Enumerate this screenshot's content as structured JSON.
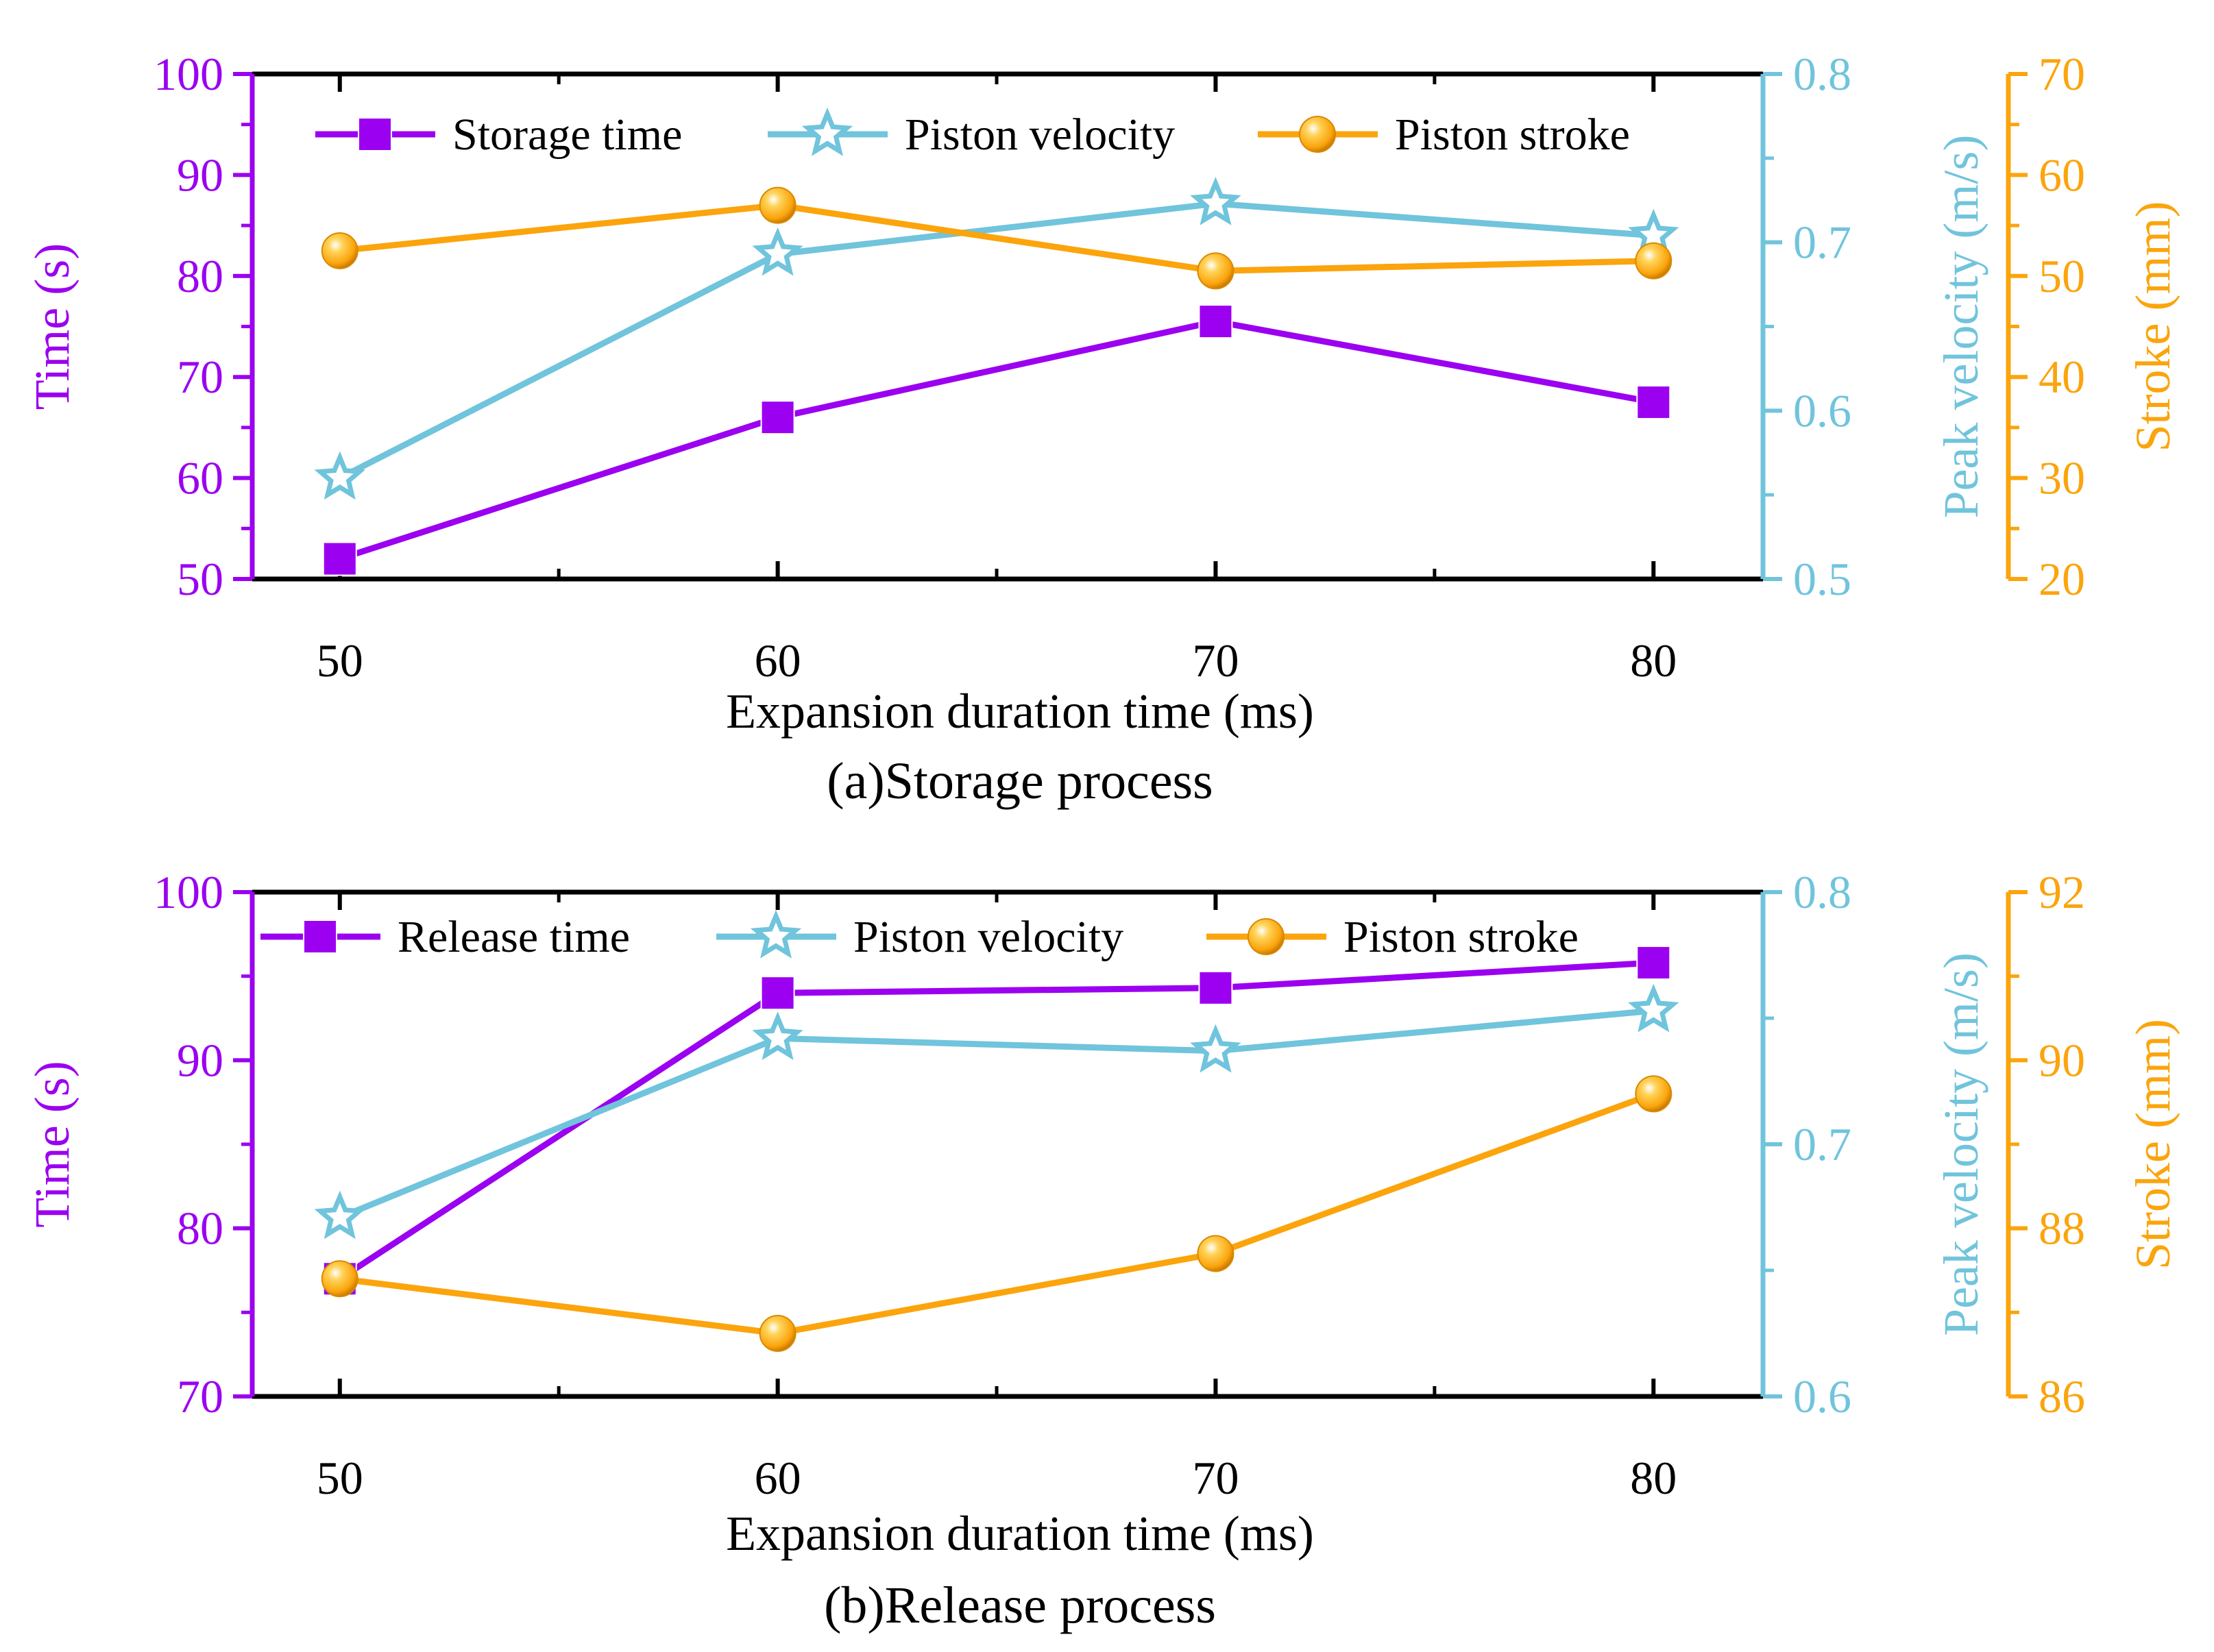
{
  "colors": {
    "time": "#9b00f0",
    "velocity": "#70c4dc",
    "stroke": "#fba40c",
    "axis": "#000000"
  },
  "chart_data": [
    {
      "type": "line",
      "caption": "(a)Storage process",
      "xlabel": "Expansion duration time (ms)",
      "x": [
        50,
        60,
        70,
        80
      ],
      "xlim": [
        48,
        82.5
      ],
      "xticks": [
        "50",
        "60",
        "70",
        "80"
      ],
      "axes": [
        {
          "label": "Time (s)",
          "range": [
            50,
            100
          ],
          "ticks": [
            "50",
            "60",
            "70",
            "80",
            "90",
            "100"
          ],
          "color": "#9b00f0"
        },
        {
          "label": "Peak velocity (m/s)",
          "range": [
            0.5,
            0.8
          ],
          "ticks": [
            "0.5",
            "0.6",
            "0.7",
            "0.8"
          ],
          "color": "#70c4dc"
        },
        {
          "label": "Stroke (mm)",
          "range": [
            20,
            70
          ],
          "ticks": [
            "20",
            "30",
            "40",
            "50",
            "60",
            "70"
          ],
          "color": "#fba40c"
        }
      ],
      "series": [
        {
          "name": "Storage time",
          "axis": 0,
          "marker": "square",
          "color": "#9b00f0",
          "values": [
            52,
            66,
            75.5,
            67.5
          ]
        },
        {
          "name": "Piston velocity",
          "axis": 1,
          "marker": "star",
          "color": "#70c4dc",
          "values": [
            0.56,
            0.693,
            0.723,
            0.704
          ]
        },
        {
          "name": "Piston stroke",
          "axis": 2,
          "marker": "ball",
          "color": "#fba40c",
          "values": [
            52.5,
            57,
            50.5,
            51.5
          ]
        }
      ]
    },
    {
      "type": "line",
      "caption": "(b)Release process",
      "xlabel": "Expansion duration time (ms)",
      "x": [
        50,
        60,
        70,
        80
      ],
      "xlim": [
        48,
        82.5
      ],
      "xticks": [
        "50",
        "60",
        "70",
        "80"
      ],
      "axes": [
        {
          "label": "Time (s)",
          "range": [
            70,
            100
          ],
          "ticks": [
            "70",
            "80",
            "90",
            "100"
          ],
          "color": "#9b00f0"
        },
        {
          "label": "Peak velocity (m/s)",
          "range": [
            0.6,
            0.8
          ],
          "ticks": [
            "0.6",
            "0.7",
            "0.8"
          ],
          "color": "#70c4dc"
        },
        {
          "label": "Stroke (mm)",
          "range": [
            86,
            92
          ],
          "ticks": [
            "86",
            "88",
            "90",
            "92"
          ],
          "color": "#fba40c"
        }
      ],
      "series": [
        {
          "name": "Release time",
          "axis": 0,
          "marker": "square",
          "color": "#9b00f0",
          "values": [
            77,
            94,
            94.3,
            95.8
          ]
        },
        {
          "name": "Piston velocity",
          "axis": 1,
          "marker": "star",
          "color": "#70c4dc",
          "values": [
            0.671,
            0.742,
            0.737,
            0.753
          ]
        },
        {
          "name": "Piston stroke",
          "axis": 2,
          "marker": "ball",
          "color": "#fba40c",
          "values": [
            87.4,
            86.75,
            87.7,
            89.6
          ]
        }
      ]
    }
  ]
}
